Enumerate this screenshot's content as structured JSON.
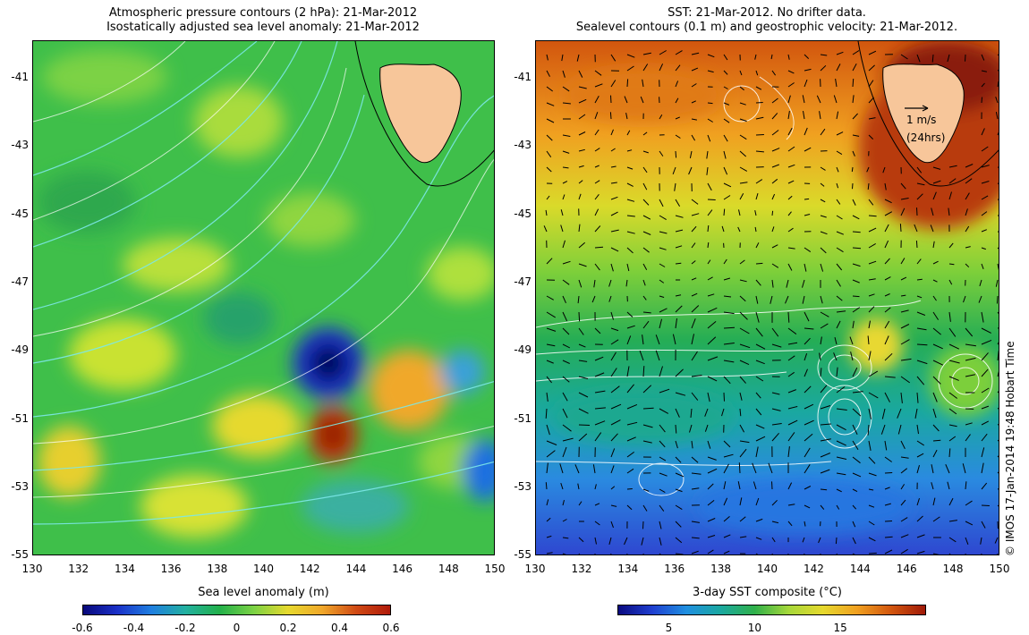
{
  "left_panel": {
    "title_line1": "Atmospheric pressure contours (2 hPa): 21-Mar-2012",
    "title_line2": "Isostatically adjusted sea level anomaly: 21-Mar-2012",
    "y_ticks": [
      "-41",
      "-43",
      "-45",
      "-47",
      "-49",
      "-51",
      "-53",
      "-55"
    ],
    "x_ticks": [
      "130",
      "132",
      "134",
      "136",
      "138",
      "140",
      "142",
      "144",
      "146",
      "148",
      "150"
    ],
    "colorbar_label": "Sea level anomaly (m)",
    "colorbar_ticks": [
      "-0.6",
      "-0.4",
      "-0.2",
      "0",
      "0.2",
      "0.4",
      "0.6"
    ],
    "colors": {
      "low": "#08087a",
      "mid": "#22b04a",
      "high": "#b01a0a"
    }
  },
  "right_panel": {
    "title_line1": "SST: 21-Mar-2012. No drifter data.",
    "title_line2": "Sealevel contours (0.1 m) and geostrophic velocity: 21-Mar-2012.",
    "y_ticks": [
      "-41",
      "-43",
      "-45",
      "-47",
      "-49",
      "-51",
      "-53",
      "-55"
    ],
    "x_ticks": [
      "130",
      "132",
      "134",
      "136",
      "138",
      "140",
      "142",
      "144",
      "146",
      "148",
      "150"
    ],
    "colorbar_label": "3-day SST composite (°C)",
    "colorbar_ticks": [
      "5",
      "10",
      "15"
    ],
    "scale_arrow_line1": "1 m/s",
    "scale_arrow_line2": "(24hrs)",
    "colors": {
      "cold": "#1f3fd0",
      "mid": "#2fb04a",
      "warm": "#c0360c",
      "land": "#f7c69a"
    }
  },
  "credit": "© IMOS 17-Jan-2014 19:48 Hobart Time"
}
